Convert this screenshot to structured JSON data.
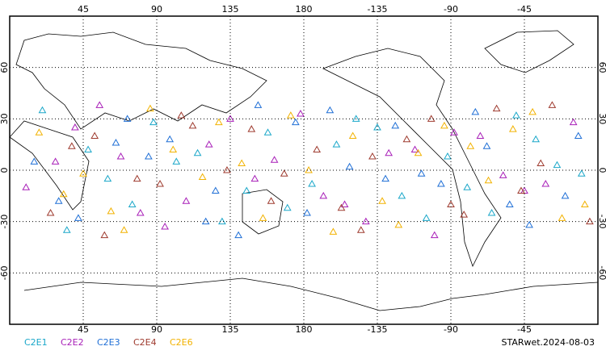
{
  "chart_data": {
    "type": "scatter",
    "xlim": [
      0,
      360
    ],
    "ylim": [
      -90,
      90
    ],
    "xticks": [
      45,
      90,
      135,
      180,
      {
        "value": 225,
        "label": "-135"
      },
      {
        "value": 270,
        "label": "-90"
      },
      {
        "value": 315,
        "label": "-45"
      }
    ],
    "yticks": [
      -60,
      -30,
      0,
      30,
      60
    ],
    "grid": true,
    "series": [
      {
        "name": "C2E1",
        "color": "#1aa7c9",
        "lon": [
          20,
          48,
          75,
          102,
          130,
          158,
          185,
          212,
          240,
          268,
          295,
          322,
          350,
          35,
          88,
          145,
          200,
          255,
          310,
          60,
          115,
          170,
          225,
          280,
          335
        ],
        "lat": [
          35,
          12,
          -20,
          5,
          -30,
          22,
          -8,
          30,
          -15,
          8,
          -25,
          18,
          -2,
          -35,
          28,
          -12,
          15,
          -28,
          32,
          -5,
          10,
          -22,
          25,
          -10,
          3
        ]
      },
      {
        "name": "C2E2",
        "color": "#a81fb8",
        "lon": [
          10,
          40,
          68,
          95,
          122,
          150,
          178,
          205,
          232,
          260,
          288,
          315,
          345,
          28,
          80,
          135,
          192,
          248,
          302,
          55,
          108,
          162,
          218,
          272,
          328
        ],
        "lat": [
          -10,
          25,
          8,
          -33,
          15,
          -5,
          33,
          -20,
          10,
          -38,
          20,
          -12,
          28,
          5,
          -25,
          30,
          -15,
          12,
          -3,
          38,
          -18,
          6,
          -30,
          22,
          -8
        ]
      },
      {
        "name": "C2E3",
        "color": "#1f6fd6",
        "lon": [
          15,
          42,
          72,
          98,
          126,
          152,
          182,
          208,
          236,
          264,
          292,
          318,
          348,
          30,
          85,
          140,
          196,
          252,
          306,
          65,
          120,
          175,
          230,
          285,
          340
        ],
        "lat": [
          5,
          -28,
          30,
          18,
          -12,
          38,
          -25,
          2,
          26,
          -8,
          14,
          -32,
          20,
          -18,
          8,
          -38,
          35,
          -2,
          -20,
          16,
          -30,
          28,
          -5,
          34,
          -15
        ]
      },
      {
        "name": "C2E4",
        "color": "#9e3a2e",
        "lon": [
          25,
          52,
          78,
          105,
          133,
          160,
          188,
          215,
          243,
          270,
          298,
          325,
          355,
          38,
          92,
          148,
          203,
          258,
          313,
          58,
          112,
          168,
          222,
          278,
          332
        ],
        "lat": [
          -25,
          20,
          -5,
          32,
          0,
          -18,
          12,
          -35,
          18,
          -20,
          36,
          4,
          -30,
          14,
          -8,
          24,
          -22,
          30,
          -12,
          -38,
          26,
          -2,
          8,
          -26,
          38
        ]
      },
      {
        "name": "C2E6",
        "color": "#f2b200",
        "lon": [
          18,
          45,
          70,
          100,
          128,
          155,
          183,
          210,
          238,
          266,
          293,
          320,
          352,
          33,
          86,
          142,
          198,
          250,
          308,
          62,
          118,
          172,
          228,
          282,
          338
        ],
        "lat": [
          22,
          -2,
          -35,
          12,
          28,
          -28,
          0,
          20,
          -32,
          26,
          -6,
          34,
          -20,
          -14,
          36,
          4,
          -36,
          10,
          24,
          -24,
          -4,
          32,
          -18,
          14,
          -28
        ]
      }
    ],
    "footer": "STARwet.2024-08-03"
  }
}
